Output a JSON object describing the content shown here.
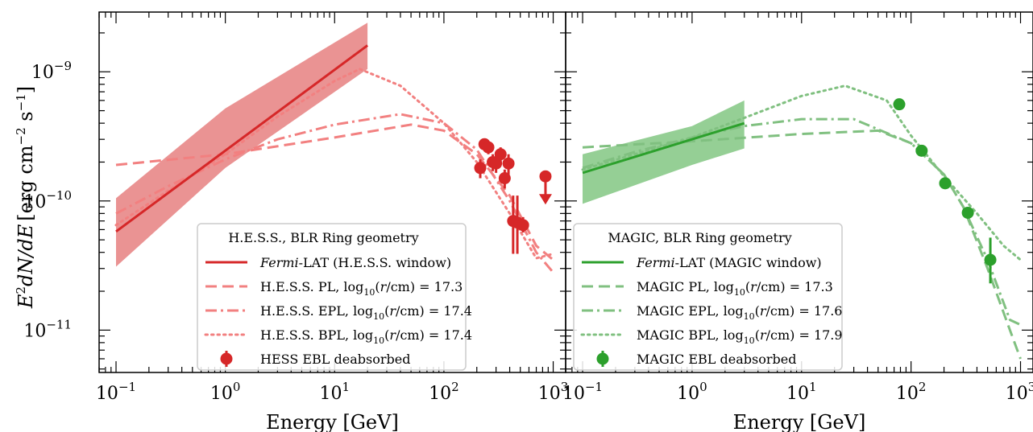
{
  "figure": {
    "ylabel": "E²dN/dE [erg cm⁻² s⁻¹]",
    "ylabel_parts": {
      "main": "E",
      "sup2": "2",
      "rest": "dN/dE",
      "units_open": "[erg cm",
      "sup_m2": "−2",
      "s": " s",
      "sup_m1": "−1",
      "units_close": "]"
    }
  },
  "chart_data": [
    {
      "type": "line",
      "panel": "left",
      "xlabel": "Energy [GeV]",
      "ylabel": "E²dN/dE [erg cm⁻² s⁻¹]",
      "xscale": "log",
      "yscale": "log",
      "xlim": [
        0.07,
        1300
      ],
      "ylim": [
        4.7e-12,
        2.9e-09
      ],
      "xticks": [
        {
          "base": "10",
          "exp": "−1",
          "v": 0.1
        },
        {
          "base": "10",
          "exp": "0",
          "v": 1
        },
        {
          "base": "10",
          "exp": "1",
          "v": 10
        },
        {
          "base": "10",
          "exp": "2",
          "v": 100
        },
        {
          "base": "10",
          "exp": "3",
          "v": 1000
        }
      ],
      "yticks": [
        {
          "base": "10",
          "exp": "−11",
          "v": 1e-11
        },
        {
          "base": "10",
          "exp": "−10",
          "v": 1e-10
        },
        {
          "base": "10",
          "exp": "−9",
          "v": 1e-09
        }
      ],
      "color": "#d62728",
      "light_color": "#f28080",
      "legend_title": "H.E.S.S., BLR Ring geometry",
      "legend_items": [
        {
          "kind": "solid",
          "pre": "",
          "italic": "Fermi",
          "post": "-LAT (H.E.S.S. window)"
        },
        {
          "kind": "dashed",
          "pre": "H.E.S.S. PL, log",
          "sub": "10",
          "mid": "(",
          "italic": "r",
          "post": "/cm) = 17.3"
        },
        {
          "kind": "dashdot",
          "pre": "H.E.S.S. EPL, log",
          "sub": "10",
          "mid": "(",
          "italic": "r",
          "post": "/cm) = 17.4"
        },
        {
          "kind": "dotted",
          "pre": "H.E.S.S. BPL, log",
          "sub": "10",
          "mid": "(",
          "italic": "r",
          "post": "/cm) = 17.4"
        },
        {
          "kind": "marker",
          "pre": "HESS EBL deabsorbed"
        }
      ],
      "fermi_line": {
        "x": [
          0.1,
          20
        ],
        "y": [
          5.8e-11,
          1.6e-09
        ]
      },
      "fermi_band": {
        "x": [
          0.1,
          1,
          20
        ],
        "upper": [
          1.05e-10,
          5.2e-10,
          2.4e-09
        ],
        "lower": [
          3.1e-11,
          1.8e-10,
          1.05e-09
        ]
      },
      "series": [
        {
          "name": "H.E.S.S. PL",
          "style": "dashed",
          "x": [
            0.1,
            1,
            10,
            50,
            100,
            200,
            400,
            700,
            1000
          ],
          "y": [
            1.9e-10,
            2.3e-10,
            3.1e-10,
            3.9e-10,
            3.5e-10,
            2.3e-10,
            1.1e-10,
            4.5e-11,
            3.5e-11
          ]
        },
        {
          "name": "H.E.S.S. EPL",
          "style": "dashdot",
          "x": [
            0.1,
            0.3,
            1,
            3,
            10,
            40,
            100,
            200,
            400,
            700,
            1000
          ],
          "y": [
            8e-11,
            1.3e-10,
            2.1e-10,
            3e-10,
            3.9e-10,
            4.7e-10,
            4e-10,
            2.5e-10,
            1e-10,
            4e-11,
            2.8e-11
          ]
        },
        {
          "name": "H.E.S.S. BPL",
          "style": "dotted",
          "x": [
            0.1,
            0.3,
            1,
            3,
            10,
            17,
            40,
            100,
            200,
            400,
            700,
            1000
          ],
          "y": [
            6.5e-11,
            1.2e-10,
            2.3e-10,
            4.5e-10,
            8.5e-10,
            1.05e-09,
            7.8e-10,
            4e-10,
            2e-10,
            8e-11,
            3.6e-11,
            3.9e-11
          ]
        }
      ],
      "points": {
        "name": "HESS EBL deabsorbed",
        "x": [
          215,
          235,
          255,
          280,
          300,
          330,
          360,
          390,
          430,
          470,
          530
        ],
        "y": [
          1.8e-10,
          2.75e-10,
          2.6e-10,
          2e-10,
          1.95e-10,
          2.3e-10,
          1.5e-10,
          1.95e-10,
          7e-11,
          6.8e-11,
          6.5e-11
        ],
        "ylo": [
          1.5e-10,
          2.45e-10,
          2.3e-10,
          1.7e-10,
          1.65e-10,
          2e-10,
          1.25e-10,
          1.6e-10,
          3.9e-11,
          3.9e-11,
          5.7e-11
        ],
        "yhi": [
          2.1e-10,
          3e-10,
          2.9e-10,
          2.3e-10,
          2.25e-10,
          2.6e-10,
          1.75e-10,
          2.3e-10,
          1.1e-10,
          1.1e-10,
          7.5e-11
        ]
      },
      "upper_limit": {
        "x": 850,
        "y": 1.55e-10
      }
    },
    {
      "type": "line",
      "panel": "right",
      "xlabel": "Energy [GeV]",
      "xscale": "log",
      "yscale": "log",
      "xlim": [
        0.07,
        1300
      ],
      "ylim": [
        4.7e-12,
        2.9e-09
      ],
      "xticks": [
        {
          "base": "10",
          "exp": "−1",
          "v": 0.1
        },
        {
          "base": "10",
          "exp": "0",
          "v": 1
        },
        {
          "base": "10",
          "exp": "1",
          "v": 10
        },
        {
          "base": "10",
          "exp": "2",
          "v": 100
        },
        {
          "base": "10",
          "exp": "3",
          "v": 1000
        }
      ],
      "color": "#2ca02c",
      "light_color": "#80c080",
      "legend_title": "MAGIC, BLR Ring geometry",
      "legend_items": [
        {
          "kind": "solid",
          "pre": "",
          "italic": "Fermi",
          "post": "-LAT (MAGIC window)"
        },
        {
          "kind": "dashed",
          "pre": "MAGIC PL, log",
          "sub": "10",
          "mid": "(",
          "italic": "r",
          "post": "/cm) = 17.3"
        },
        {
          "kind": "dashdot",
          "pre": "MAGIC EPL, log",
          "sub": "10",
          "mid": "(",
          "italic": "r",
          "post": "/cm) = 17.6"
        },
        {
          "kind": "dotted",
          "pre": "MAGIC BPL, log",
          "sub": "10",
          "mid": "(",
          "italic": "r",
          "post": "/cm) = 17.9"
        },
        {
          "kind": "marker",
          "pre": "MAGIC EBL deabsorbed"
        }
      ],
      "fermi_line": {
        "x": [
          0.1,
          3
        ],
        "y": [
          1.65e-10,
          4e-10
        ]
      },
      "fermi_band": {
        "x": [
          0.1,
          1,
          3
        ],
        "upper": [
          2.3e-10,
          3.8e-10,
          6e-10
        ],
        "lower": [
          9.5e-11,
          1.9e-10,
          2.55e-10
        ]
      },
      "series": [
        {
          "name": "MAGIC PL",
          "style": "dashed",
          "x": [
            0.1,
            1,
            10,
            50,
            100,
            200,
            300,
            500,
            800,
            1000
          ],
          "y": [
            2.6e-10,
            2.9e-10,
            3.3e-10,
            3.5e-10,
            2.8e-10,
            1.6e-10,
            9e-11,
            3e-11,
            1e-11,
            6e-12
          ]
        },
        {
          "name": "MAGIC EPL",
          "style": "dashdot",
          "x": [
            0.1,
            0.3,
            1,
            3,
            10,
            30,
            100,
            200,
            300,
            500,
            800,
            1000
          ],
          "y": [
            1.8e-10,
            2.4e-10,
            3.1e-10,
            3.8e-10,
            4.3e-10,
            4.3e-10,
            2.8e-10,
            1.6e-10,
            9e-11,
            3.5e-11,
            1.2e-11,
            1.1e-11
          ]
        },
        {
          "name": "MAGIC BPL",
          "style": "dotted",
          "x": [
            0.1,
            0.3,
            1,
            3,
            10,
            25,
            60,
            100,
            200,
            400,
            700,
            1000
          ],
          "y": [
            1.75e-10,
            2.3e-10,
            3.1e-10,
            4.4e-10,
            6.5e-10,
            7.8e-10,
            6e-10,
            3.2e-10,
            1.55e-10,
            8e-11,
            4.5e-11,
            3.5e-11
          ]
        }
      ],
      "points": {
        "name": "MAGIC EBL deabsorbed",
        "x": [
          78,
          125,
          205,
          330,
          530
        ],
        "y": [
          5.6e-10,
          2.45e-10,
          1.37e-10,
          8.1e-11,
          3.5e-11
        ],
        "ylo": [
          5.6e-10,
          2.45e-10,
          1.37e-10,
          7.5e-11,
          2.3e-11
        ],
        "yhi": [
          5.6e-10,
          2.45e-10,
          1.37e-10,
          8.7e-11,
          5.2e-11
        ]
      }
    }
  ]
}
